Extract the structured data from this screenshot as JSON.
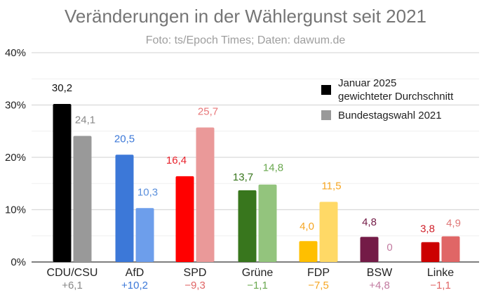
{
  "chart_data": {
    "type": "bar",
    "title": "Veränderungen in der Wählergunst seit 2021",
    "subtitle": "Foto: ts/Epoch Times; Daten: dawum.de",
    "xlabel": "",
    "ylabel": "",
    "ylim": [
      0,
      40
    ],
    "yticks": [
      0,
      10,
      20,
      30,
      40
    ],
    "ytick_labels": [
      "0%",
      "10%",
      "20%",
      "30%",
      "40%"
    ],
    "minor_gridlines": [
      5,
      15,
      25,
      35
    ],
    "grid": true,
    "legend_position": "top-right",
    "categories": [
      "CDU/CSU",
      "AfD",
      "SPD",
      "Grüne",
      "FDP",
      "BSW",
      "Linke"
    ],
    "series": [
      {
        "name": "Januar 2025 gewichteter Durchschnitt",
        "legend_lines": [
          "Januar 2025",
          "gewichteter Durchschnitt"
        ],
        "legend_color": "#000000",
        "values": [
          30.2,
          20.5,
          16.4,
          13.7,
          4.0,
          4.8,
          3.8
        ],
        "labels": [
          "30,2",
          "20,5",
          "16,4",
          "13,7",
          "4,0",
          "4,8",
          "3,8"
        ],
        "colors": [
          "#000000",
          "#3c78d8",
          "#ff0000",
          "#38761d",
          "#ffbf00",
          "#741b47",
          "#cc0000"
        ],
        "label_colors": [
          "#111111",
          "#3c78d8",
          "#e8202a",
          "#38761d",
          "#f6a623",
          "#741b47",
          "#d0202a"
        ]
      },
      {
        "name": "Bundestagswahl 2021",
        "legend_lines": [
          "Bundestagswahl 2021"
        ],
        "legend_color": "#999999",
        "values": [
          24.1,
          10.3,
          25.7,
          14.8,
          11.5,
          0,
          4.9
        ],
        "labels": [
          "24,1",
          "10,3",
          "25,7",
          "14,8",
          "11,5",
          "0",
          "4,9"
        ],
        "colors": [
          "#999999",
          "#6d9eeb",
          "#ea9999",
          "#93c47d",
          "#ffd966",
          "#741b47",
          "#e06666"
        ],
        "label_colors": [
          "#888888",
          "#5a8fdc",
          "#e8787a",
          "#6aa84f",
          "#f6a623",
          "#c27ba0",
          "#e07878"
        ]
      }
    ],
    "differences": [
      {
        "label": "+6,1",
        "color": "#888888"
      },
      {
        "label": "+10,2",
        "color": "#3c78d8"
      },
      {
        "label": "−9,3",
        "color": "#e06666"
      },
      {
        "label": "−1,1",
        "color": "#6aa84f"
      },
      {
        "label": "−7,5",
        "color": "#f6a623"
      },
      {
        "label": "+4,8",
        "color": "#c27ba0"
      },
      {
        "label": "−1,1",
        "color": "#e06666"
      }
    ]
  }
}
